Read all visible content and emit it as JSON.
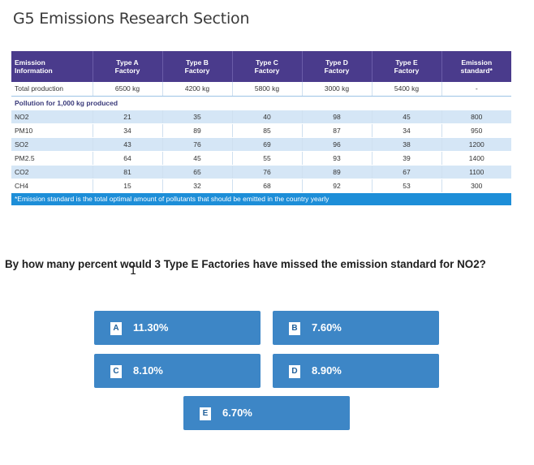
{
  "title": "G5 Emissions Research Section",
  "table": {
    "headers": [
      "Emission\nInformation",
      "Type A\nFactory",
      "Type B\nFactory",
      "Type C\nFactory",
      "Type D\nFactory",
      "Type E\nFactory",
      "Emission\nstandard*"
    ],
    "total_row": [
      "Total production",
      "6500 kg",
      "4200 kg",
      "5800 kg",
      "3000 kg",
      "5400 kg",
      "-"
    ],
    "section_label": "Pollution for 1,000 kg produced",
    "rows": [
      [
        "NO2",
        "21",
        "35",
        "40",
        "98",
        "45",
        "800"
      ],
      [
        "PM10",
        "34",
        "89",
        "85",
        "87",
        "34",
        "950"
      ],
      [
        "SO2",
        "43",
        "76",
        "69",
        "96",
        "38",
        "1200"
      ],
      [
        "PM2.5",
        "64",
        "45",
        "55",
        "93",
        "39",
        "1400"
      ],
      [
        "CO2",
        "81",
        "65",
        "76",
        "89",
        "67",
        "1100"
      ],
      [
        "CH4",
        "15",
        "32",
        "68",
        "92",
        "53",
        "300"
      ]
    ],
    "footnote": "*Emission standard is the total optimal amount of pollutants that should be emitted in the country yearly"
  },
  "question": "By how many percent would 3 Type E Factories have missed the emission standard for NO2?",
  "options": [
    {
      "letter": "A",
      "value": "11.30%"
    },
    {
      "letter": "B",
      "value": "7.60%"
    },
    {
      "letter": "C",
      "value": "8.10%"
    },
    {
      "letter": "D",
      "value": "8.90%"
    },
    {
      "letter": "E",
      "value": "6.70%"
    }
  ],
  "colors": {
    "header_bg": "#4a3b8c",
    "row_alt_bg": "#d5e6f6",
    "footnote_bg": "#1d8ed8",
    "option_bg": "#3d86c6"
  }
}
